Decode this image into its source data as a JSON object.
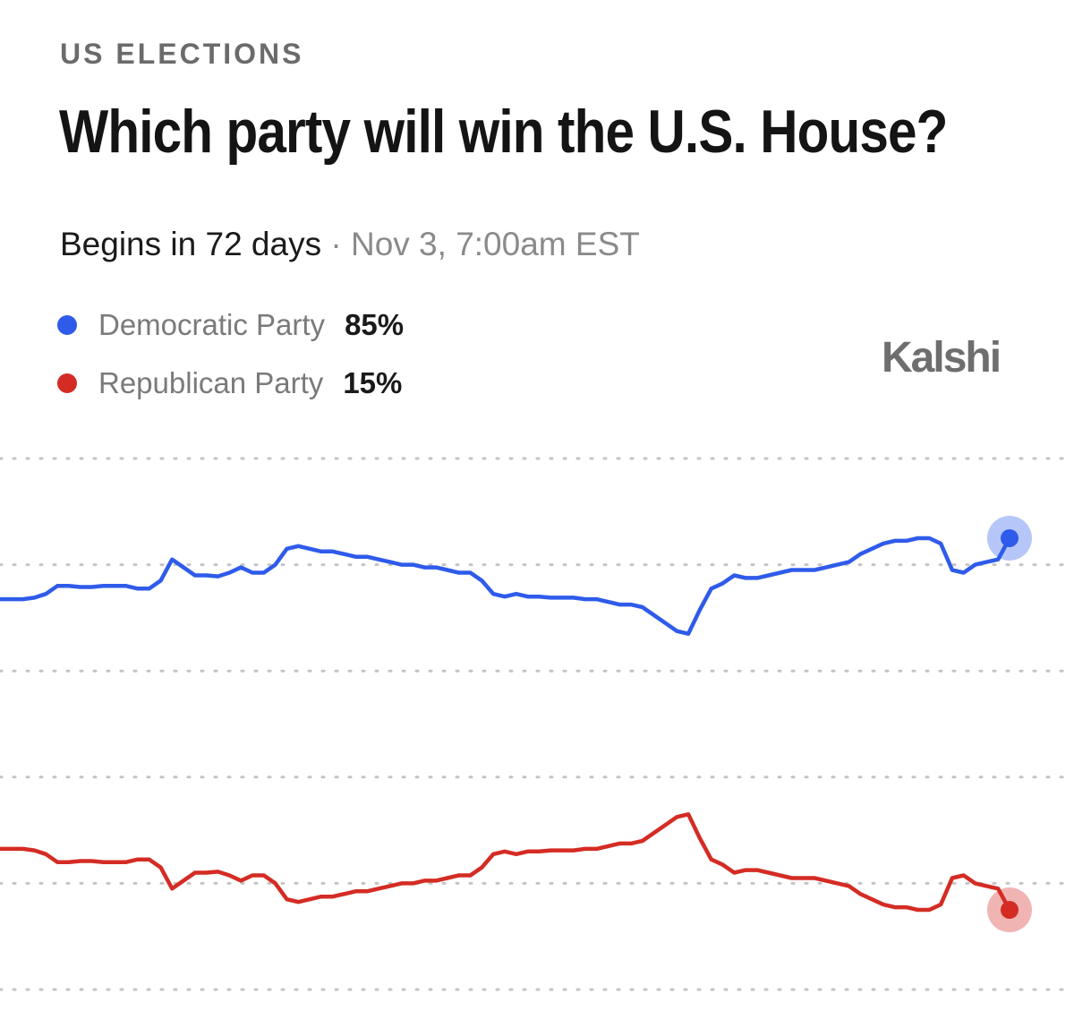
{
  "header": {
    "kicker": "US ELECTIONS",
    "title": "Which party will win the U.S. House?",
    "begins": "Begins in 72 days",
    "separator": "·",
    "date": "Nov 3, 7:00am EST"
  },
  "brand": "Kalshi",
  "colors": {
    "democratic": "#2f5bea",
    "republican": "#d42c24",
    "grid": "#c4c4c4"
  },
  "legend": [
    {
      "name": "Democratic Party",
      "value": "85%",
      "color": "#2f5bea"
    },
    {
      "name": "Republican Party",
      "value": "15%",
      "color": "#d42c24"
    }
  ],
  "chart_data": {
    "type": "line",
    "title": "",
    "xlabel": "",
    "ylabel": "",
    "ylim": [
      0,
      100
    ],
    "grid": true,
    "legend_placement": "top-left",
    "series": [
      {
        "name": "Democratic Party",
        "color": "#2f5bea",
        "x": [
          0,
          1,
          2,
          3,
          4,
          5,
          6,
          7,
          8,
          9,
          10,
          11,
          12,
          13,
          14,
          15,
          16,
          17,
          18,
          19,
          20,
          21,
          22,
          23,
          24,
          25,
          26,
          27,
          28,
          29,
          30,
          31,
          32,
          33,
          34,
          35,
          36,
          37,
          38,
          39,
          40,
          41,
          42,
          43,
          44,
          45,
          46,
          47,
          48,
          49,
          50,
          51,
          52,
          53,
          54,
          55,
          56,
          57,
          58,
          59,
          60,
          61,
          62,
          63,
          64,
          65,
          66,
          67,
          68,
          69,
          70,
          71,
          72,
          73,
          74,
          75,
          76,
          77,
          78,
          79,
          80,
          81,
          82,
          83,
          84,
          85,
          86,
          87,
          88
        ],
        "values": [
          73.5,
          73.5,
          73.5,
          73.8,
          74.5,
          76,
          76,
          75.8,
          75.8,
          76,
          76,
          76,
          75.5,
          75.5,
          77,
          81,
          79.5,
          78,
          78,
          77.8,
          78.5,
          79.5,
          78.5,
          78.5,
          80,
          83,
          83.5,
          83,
          82.5,
          82.5,
          82,
          81.5,
          81.5,
          81,
          80.5,
          80,
          80,
          79.5,
          79.5,
          79,
          78.5,
          78.5,
          77,
          74.5,
          74,
          74.5,
          74,
          74,
          73.8,
          73.8,
          73.8,
          73.5,
          73.5,
          73,
          72.5,
          72.5,
          72,
          70.5,
          69,
          67.5,
          67,
          71.5,
          75.5,
          76.5,
          78,
          77.5,
          77.5,
          78,
          78.5,
          79,
          79,
          79,
          79.5,
          80,
          80.5,
          82,
          83,
          84,
          84.5,
          84.5,
          85,
          85,
          84,
          79,
          78.5,
          80,
          80.5,
          81,
          85
        ]
      },
      {
        "name": "Republican Party",
        "color": "#d42c24",
        "x": [
          0,
          1,
          2,
          3,
          4,
          5,
          6,
          7,
          8,
          9,
          10,
          11,
          12,
          13,
          14,
          15,
          16,
          17,
          18,
          19,
          20,
          21,
          22,
          23,
          24,
          25,
          26,
          27,
          28,
          29,
          30,
          31,
          32,
          33,
          34,
          35,
          36,
          37,
          38,
          39,
          40,
          41,
          42,
          43,
          44,
          45,
          46,
          47,
          48,
          49,
          50,
          51,
          52,
          53,
          54,
          55,
          56,
          57,
          58,
          59,
          60,
          61,
          62,
          63,
          64,
          65,
          66,
          67,
          68,
          69,
          70,
          71,
          72,
          73,
          74,
          75,
          76,
          77,
          78,
          79,
          80,
          81,
          82,
          83,
          84,
          85,
          86,
          87,
          88
        ],
        "values": [
          26.5,
          26.5,
          26.5,
          26.2,
          25.5,
          24,
          24,
          24.2,
          24.2,
          24,
          24,
          24,
          24.5,
          24.5,
          23,
          19,
          20.5,
          22,
          22,
          22.2,
          21.5,
          20.5,
          21.5,
          21.5,
          20,
          17,
          16.5,
          17,
          17.5,
          17.5,
          18,
          18.5,
          18.5,
          19,
          19.5,
          20,
          20,
          20.5,
          20.5,
          21,
          21.5,
          21.5,
          23,
          25.5,
          26,
          25.5,
          26,
          26,
          26.2,
          26.2,
          26.2,
          26.5,
          26.5,
          27,
          27.5,
          27.5,
          28,
          29.5,
          31,
          32.5,
          33,
          28.5,
          24.5,
          23.5,
          22,
          22.5,
          22.5,
          22,
          21.5,
          21,
          21,
          21,
          20.5,
          20,
          19.5,
          18,
          17,
          16,
          15.5,
          15.5,
          15,
          15,
          16,
          21,
          21.5,
          20,
          19.5,
          19,
          15
        ]
      }
    ]
  }
}
